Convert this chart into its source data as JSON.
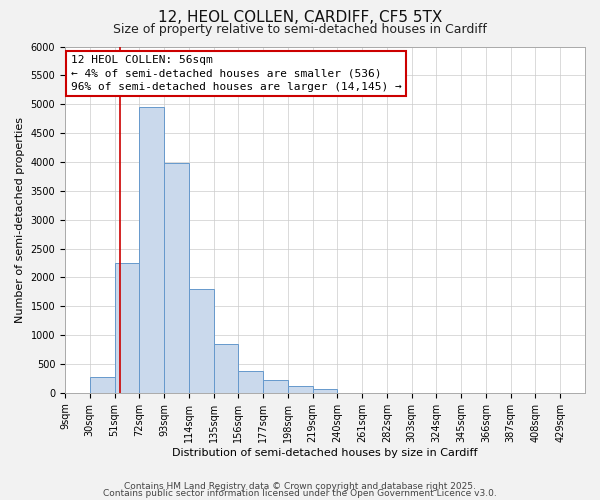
{
  "title": "12, HEOL COLLEN, CARDIFF, CF5 5TX",
  "subtitle": "Size of property relative to semi-detached houses in Cardiff",
  "xlabel": "Distribution of semi-detached houses by size in Cardiff",
  "ylabel": "Number of semi-detached properties",
  "bar_left_edges": [
    9,
    30,
    51,
    72,
    93,
    114,
    135,
    156,
    177,
    198,
    219,
    240,
    261,
    282,
    303,
    324,
    345,
    366,
    387,
    408
  ],
  "bar_heights": [
    0,
    270,
    2250,
    4950,
    3975,
    1800,
    850,
    375,
    225,
    115,
    75,
    0,
    0,
    0,
    0,
    0,
    0,
    0,
    0,
    0
  ],
  "bin_width": 21,
  "bar_face_color": "#cad9ec",
  "bar_edge_color": "#6699cc",
  "property_line_x": 56,
  "property_line_color": "#cc0000",
  "annotation_text": "12 HEOL COLLEN: 56sqm\n← 4% of semi-detached houses are smaller (536)\n96% of semi-detached houses are larger (14,145) →",
  "annotation_box_color": "#ffffff",
  "annotation_box_edge": "#cc0000",
  "ylim": [
    0,
    6000
  ],
  "yticks": [
    0,
    500,
    1000,
    1500,
    2000,
    2500,
    3000,
    3500,
    4000,
    4500,
    5000,
    5500,
    6000
  ],
  "xtick_labels": [
    "9sqm",
    "30sqm",
    "51sqm",
    "72sqm",
    "93sqm",
    "114sqm",
    "135sqm",
    "156sqm",
    "177sqm",
    "198sqm",
    "219sqm",
    "240sqm",
    "261sqm",
    "282sqm",
    "303sqm",
    "324sqm",
    "345sqm",
    "366sqm",
    "387sqm",
    "408sqm",
    "429sqm"
  ],
  "xtick_positions": [
    9,
    30,
    51,
    72,
    93,
    114,
    135,
    156,
    177,
    198,
    219,
    240,
    261,
    282,
    303,
    324,
    345,
    366,
    387,
    408,
    429
  ],
  "background_color": "#f2f2f2",
  "plot_bg_color": "#ffffff",
  "grid_color": "#cccccc",
  "footer_line1": "Contains HM Land Registry data © Crown copyright and database right 2025.",
  "footer_line2": "Contains public sector information licensed under the Open Government Licence v3.0.",
  "title_fontsize": 11,
  "subtitle_fontsize": 9,
  "axis_label_fontsize": 8,
  "tick_fontsize": 7,
  "annotation_fontsize": 8,
  "footer_fontsize": 6.5
}
